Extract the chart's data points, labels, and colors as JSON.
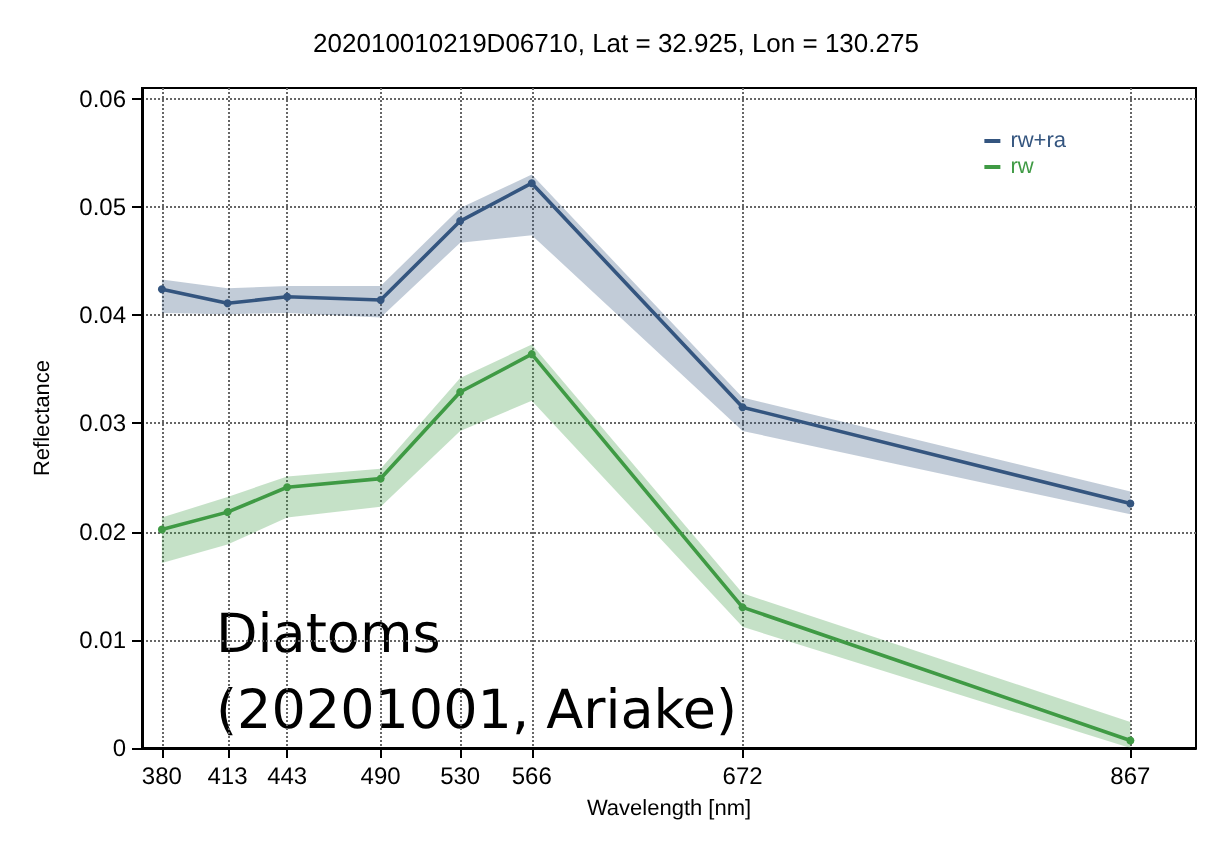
{
  "chart_data": {
    "type": "line",
    "title": "202010010219D06710, Lat = 32.925, Lon = 130.275",
    "xlabel": "Wavelength [nm]",
    "ylabel": "Reflectance",
    "x": [
      380,
      413,
      443,
      490,
      530,
      566,
      672,
      867
    ],
    "series": [
      {
        "name": "rw+ra",
        "color": "#34557f",
        "values": [
          0.0424,
          0.0411,
          0.0417,
          0.0414,
          0.0487,
          0.0522,
          0.0315,
          0.0226
        ],
        "lower": [
          0.0402,
          0.0401,
          0.0402,
          0.0398,
          0.0467,
          0.0474,
          0.0293,
          0.0216
        ],
        "upper": [
          0.0433,
          0.0425,
          0.0427,
          0.0427,
          0.0499,
          0.053,
          0.0324,
          0.0237
        ]
      },
      {
        "name": "rw",
        "color": "#3f9a44",
        "values": [
          0.0202,
          0.0218,
          0.0241,
          0.0249,
          0.0329,
          0.0364,
          0.013,
          0.0007
        ],
        "lower": [
          0.0171,
          0.0188,
          0.0213,
          0.0223,
          0.0293,
          0.0321,
          0.0112,
          0.0
        ],
        "upper": [
          0.0213,
          0.0232,
          0.0251,
          0.0258,
          0.0342,
          0.0373,
          0.0143,
          0.0024
        ]
      }
    ],
    "xlim": [
      370,
      900
    ],
    "xticks": [
      380,
      413,
      443,
      490,
      530,
      566,
      672,
      867
    ],
    "ylim": [
      0,
      0.061
    ],
    "yticks": [
      0,
      0.01,
      0.02,
      0.03,
      0.04,
      0.05,
      0.06
    ],
    "annotations": [
      "Diatoms",
      "(20201001, Ariake)"
    ],
    "grid": true,
    "legend": "top right",
    "marker": "circle",
    "line_style": "solid"
  }
}
